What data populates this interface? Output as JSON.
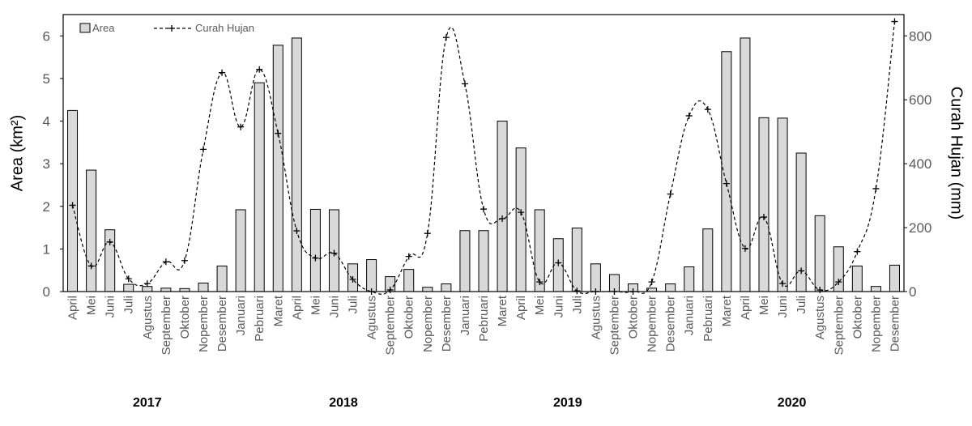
{
  "chart_data": {
    "type": "bar+line",
    "title": "",
    "ylabel_left": "Area (km²)",
    "ylabel_right": "Curah Hujan (mm)",
    "ylim_left": [
      0,
      6.5
    ],
    "yticks_left": [
      0,
      1,
      2,
      3,
      4,
      5,
      6
    ],
    "ylim_right": [
      0,
      866.67
    ],
    "yticks_right": [
      0,
      200,
      400,
      600,
      800
    ],
    "legend_position": "top-left",
    "grid": false,
    "categories": [
      "April",
      "Mei",
      "Juni",
      "Juli",
      "Agustus",
      "September",
      "Oktober",
      "Nopember",
      "Desember",
      "Januari",
      "Pebruari",
      "Maret",
      "April",
      "Mei",
      "Juni",
      "Juli",
      "Agustus",
      "September",
      "Oktober",
      "Nopember",
      "Desember",
      "Januari",
      "Pebruari",
      "Maret",
      "April",
      "Mei",
      "Juni",
      "Juli",
      "Agustus",
      "September",
      "Oktober",
      "Nopember",
      "Desember",
      "Januari",
      "Pebruari",
      "Maret",
      "April",
      "Mei",
      "Juni",
      "Juli",
      "Agustus",
      "September",
      "Oktober",
      "Nopember",
      "Desember"
    ],
    "years": [
      {
        "label": "2017",
        "start": 0,
        "end": 8
      },
      {
        "label": "2018",
        "start": 9,
        "end": 20
      },
      {
        "label": "2019",
        "start": 21,
        "end": 32
      },
      {
        "label": "2020",
        "start": 33,
        "end": 44
      }
    ],
    "series": [
      {
        "name": "Area",
        "kind": "bar",
        "axis": "left",
        "color": "#d9d9d9",
        "values": [
          4.25,
          2.85,
          1.45,
          0.17,
          0.12,
          0.08,
          0.07,
          0.2,
          0.6,
          1.92,
          4.9,
          5.78,
          5.95,
          1.93,
          1.92,
          0.65,
          0.75,
          0.35,
          0.52,
          0.1,
          0.18,
          1.43,
          1.43,
          4.0,
          3.37,
          1.92,
          1.24,
          1.49,
          0.65,
          0.4,
          0.18,
          0.08,
          0.18,
          0.58,
          1.47,
          5.63,
          5.95,
          4.08,
          4.07,
          3.25,
          1.78,
          1.05,
          0.6,
          0.12,
          0.62
        ]
      },
      {
        "name": "Curah Hujan",
        "kind": "line",
        "axis": "right",
        "color": "#000000",
        "values": [
          270,
          80,
          155,
          40,
          25,
          93,
          97,
          445,
          685,
          515,
          695,
          495,
          190,
          105,
          120,
          38,
          0,
          5,
          110,
          182,
          795,
          650,
          258,
          228,
          248,
          30,
          90,
          2,
          0,
          0,
          0,
          30,
          305,
          550,
          570,
          338,
          135,
          233,
          25,
          65,
          5,
          30,
          125,
          322,
          845
        ]
      }
    ]
  }
}
